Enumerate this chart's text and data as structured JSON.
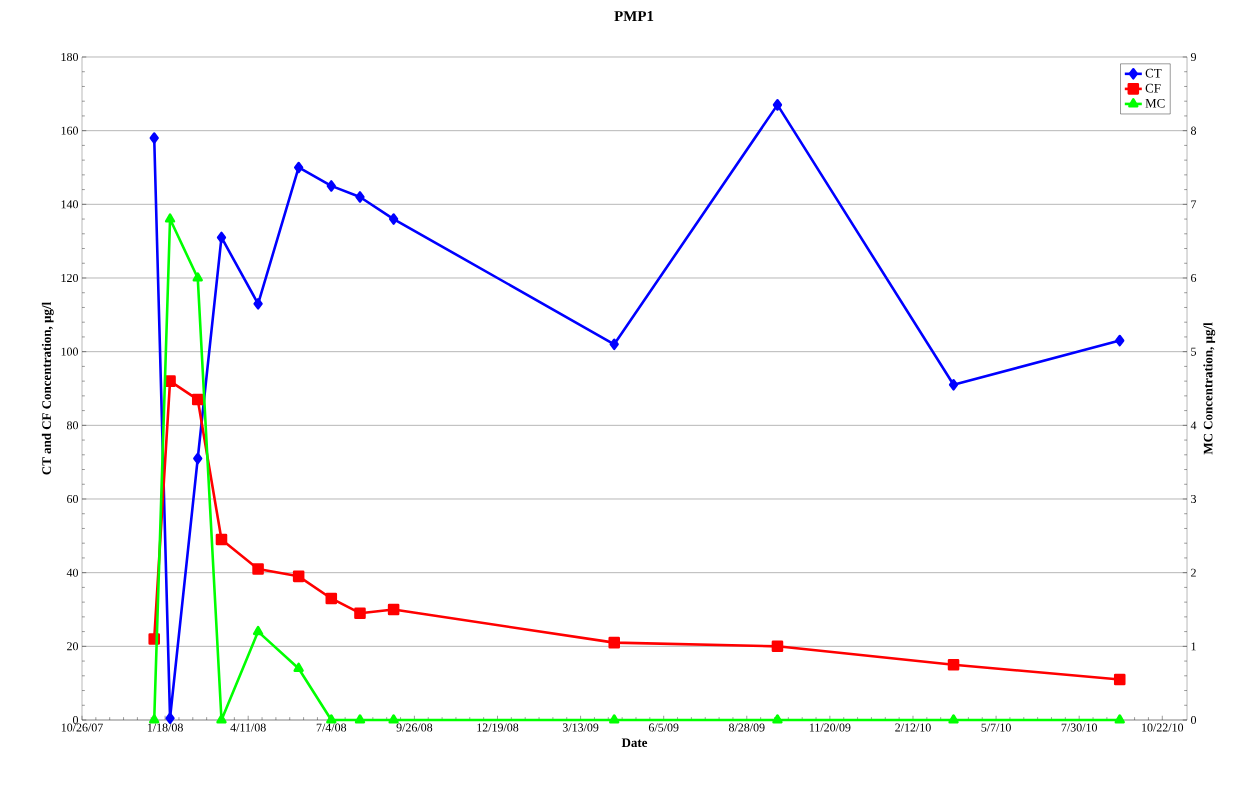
{
  "chart_data": {
    "type": "line",
    "title": "PMP1",
    "xlabel": "Date",
    "ylabel": "CT and CF Concentration, µg/l",
    "y2label": "MC Concentration, µg/l",
    "x": [
      "2008-01-07",
      "2008-01-23",
      "2008-02-20",
      "2008-03-15",
      "2008-04-21",
      "2008-06-01",
      "2008-07-04",
      "2008-08-02",
      "2008-09-05",
      "2009-04-16",
      "2009-09-28",
      "2010-03-25",
      "2010-09-09"
    ],
    "series": [
      {
        "name": "CT",
        "color": "#0000ff",
        "marker": "diamond",
        "values": [
          158,
          0.5,
          71,
          131,
          113,
          150,
          145,
          142,
          136,
          102,
          167,
          91,
          103
        ]
      },
      {
        "name": "CF",
        "color": "#ff0000",
        "marker": "square",
        "values": [
          22,
          92,
          87,
          49,
          41,
          39,
          33,
          29,
          30,
          21,
          20,
          15,
          11
        ]
      },
      {
        "name": "MC",
        "color": "#00ff00",
        "marker": "triangle",
        "axis": "y2",
        "values": [
          0,
          6.8,
          6.0,
          0,
          1.2,
          0.7,
          0,
          0,
          0,
          0,
          0,
          0,
          0
        ]
      }
    ],
    "xlim": [
      "2007-10-26",
      "2010-11-16"
    ],
    "xticks": [
      {
        "value": "2007-10-26",
        "label": "10/26/07"
      },
      {
        "value": "2008-01-18",
        "label": "1/18/08"
      },
      {
        "value": "2008-04-11",
        "label": "4/11/08"
      },
      {
        "value": "2008-07-04",
        "label": "7/4/08"
      },
      {
        "value": "2008-09-26",
        "label": "9/26/08"
      },
      {
        "value": "2008-12-19",
        "label": "12/19/08"
      },
      {
        "value": "2009-03-13",
        "label": "3/13/09"
      },
      {
        "value": "2009-06-05",
        "label": "6/5/09"
      },
      {
        "value": "2009-08-28",
        "label": "8/28/09"
      },
      {
        "value": "2009-11-20",
        "label": "11/20/09"
      },
      {
        "value": "2010-02-12",
        "label": "2/12/10"
      },
      {
        "value": "2010-05-07",
        "label": "5/7/10"
      },
      {
        "value": "2010-07-30",
        "label": "7/30/10"
      },
      {
        "value": "2010-10-22",
        "label": "10/22/10"
      }
    ],
    "ylim": [
      0,
      180
    ],
    "yticks": [
      0,
      20,
      40,
      60,
      80,
      100,
      120,
      140,
      160,
      180
    ],
    "y2lim": [
      0,
      9
    ],
    "y2ticks": [
      0,
      1,
      2,
      3,
      4,
      5,
      6,
      7,
      8,
      9
    ],
    "grid": "y",
    "legend": "top right"
  }
}
